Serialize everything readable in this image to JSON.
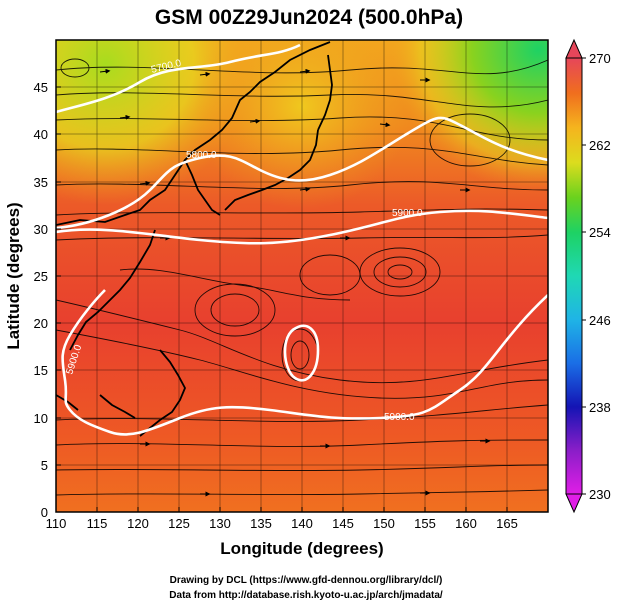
{
  "title": "GSM 00Z29Jun2024 (500.0hPa)",
  "x_axis": {
    "label": "Longitude (degrees)",
    "ticks": [
      "110",
      "115",
      "120",
      "125",
      "130",
      "135",
      "140",
      "145",
      "150",
      "155",
      "160",
      "165"
    ],
    "range": [
      110,
      170
    ]
  },
  "y_axis": {
    "label": "Latitude  (degrees)",
    "ticks": [
      "0",
      "5",
      "10",
      "15",
      "20",
      "25",
      "30",
      "35",
      "40",
      "45"
    ],
    "range": [
      0,
      50
    ]
  },
  "colorbar": {
    "ticks": [
      "230",
      "238",
      "246",
      "254",
      "262",
      "270"
    ],
    "range": [
      230,
      270
    ],
    "colors": [
      "#d81fd8",
      "#7a1fc8",
      "#1414b4",
      "#1a6ee6",
      "#1fb4e6",
      "#1fd8b4",
      "#1ed264",
      "#5ad21e",
      "#a8dc1e",
      "#e6dc1e",
      "#f5a51e",
      "#f06e1e",
      "#e63c32",
      "#e6465a"
    ]
  },
  "contours": {
    "labels": [
      "5700.0",
      "5800.0",
      "5900.0",
      "5900.0",
      "5900.0"
    ],
    "color": "#ffffff"
  },
  "credits": {
    "line1": "Drawing by DCL (https://www.gfd-dennou.org/library/dcl/)",
    "line2": "Data from http://database.rish.kyoto-u.ac.jp/arch/jmadata/"
  }
}
